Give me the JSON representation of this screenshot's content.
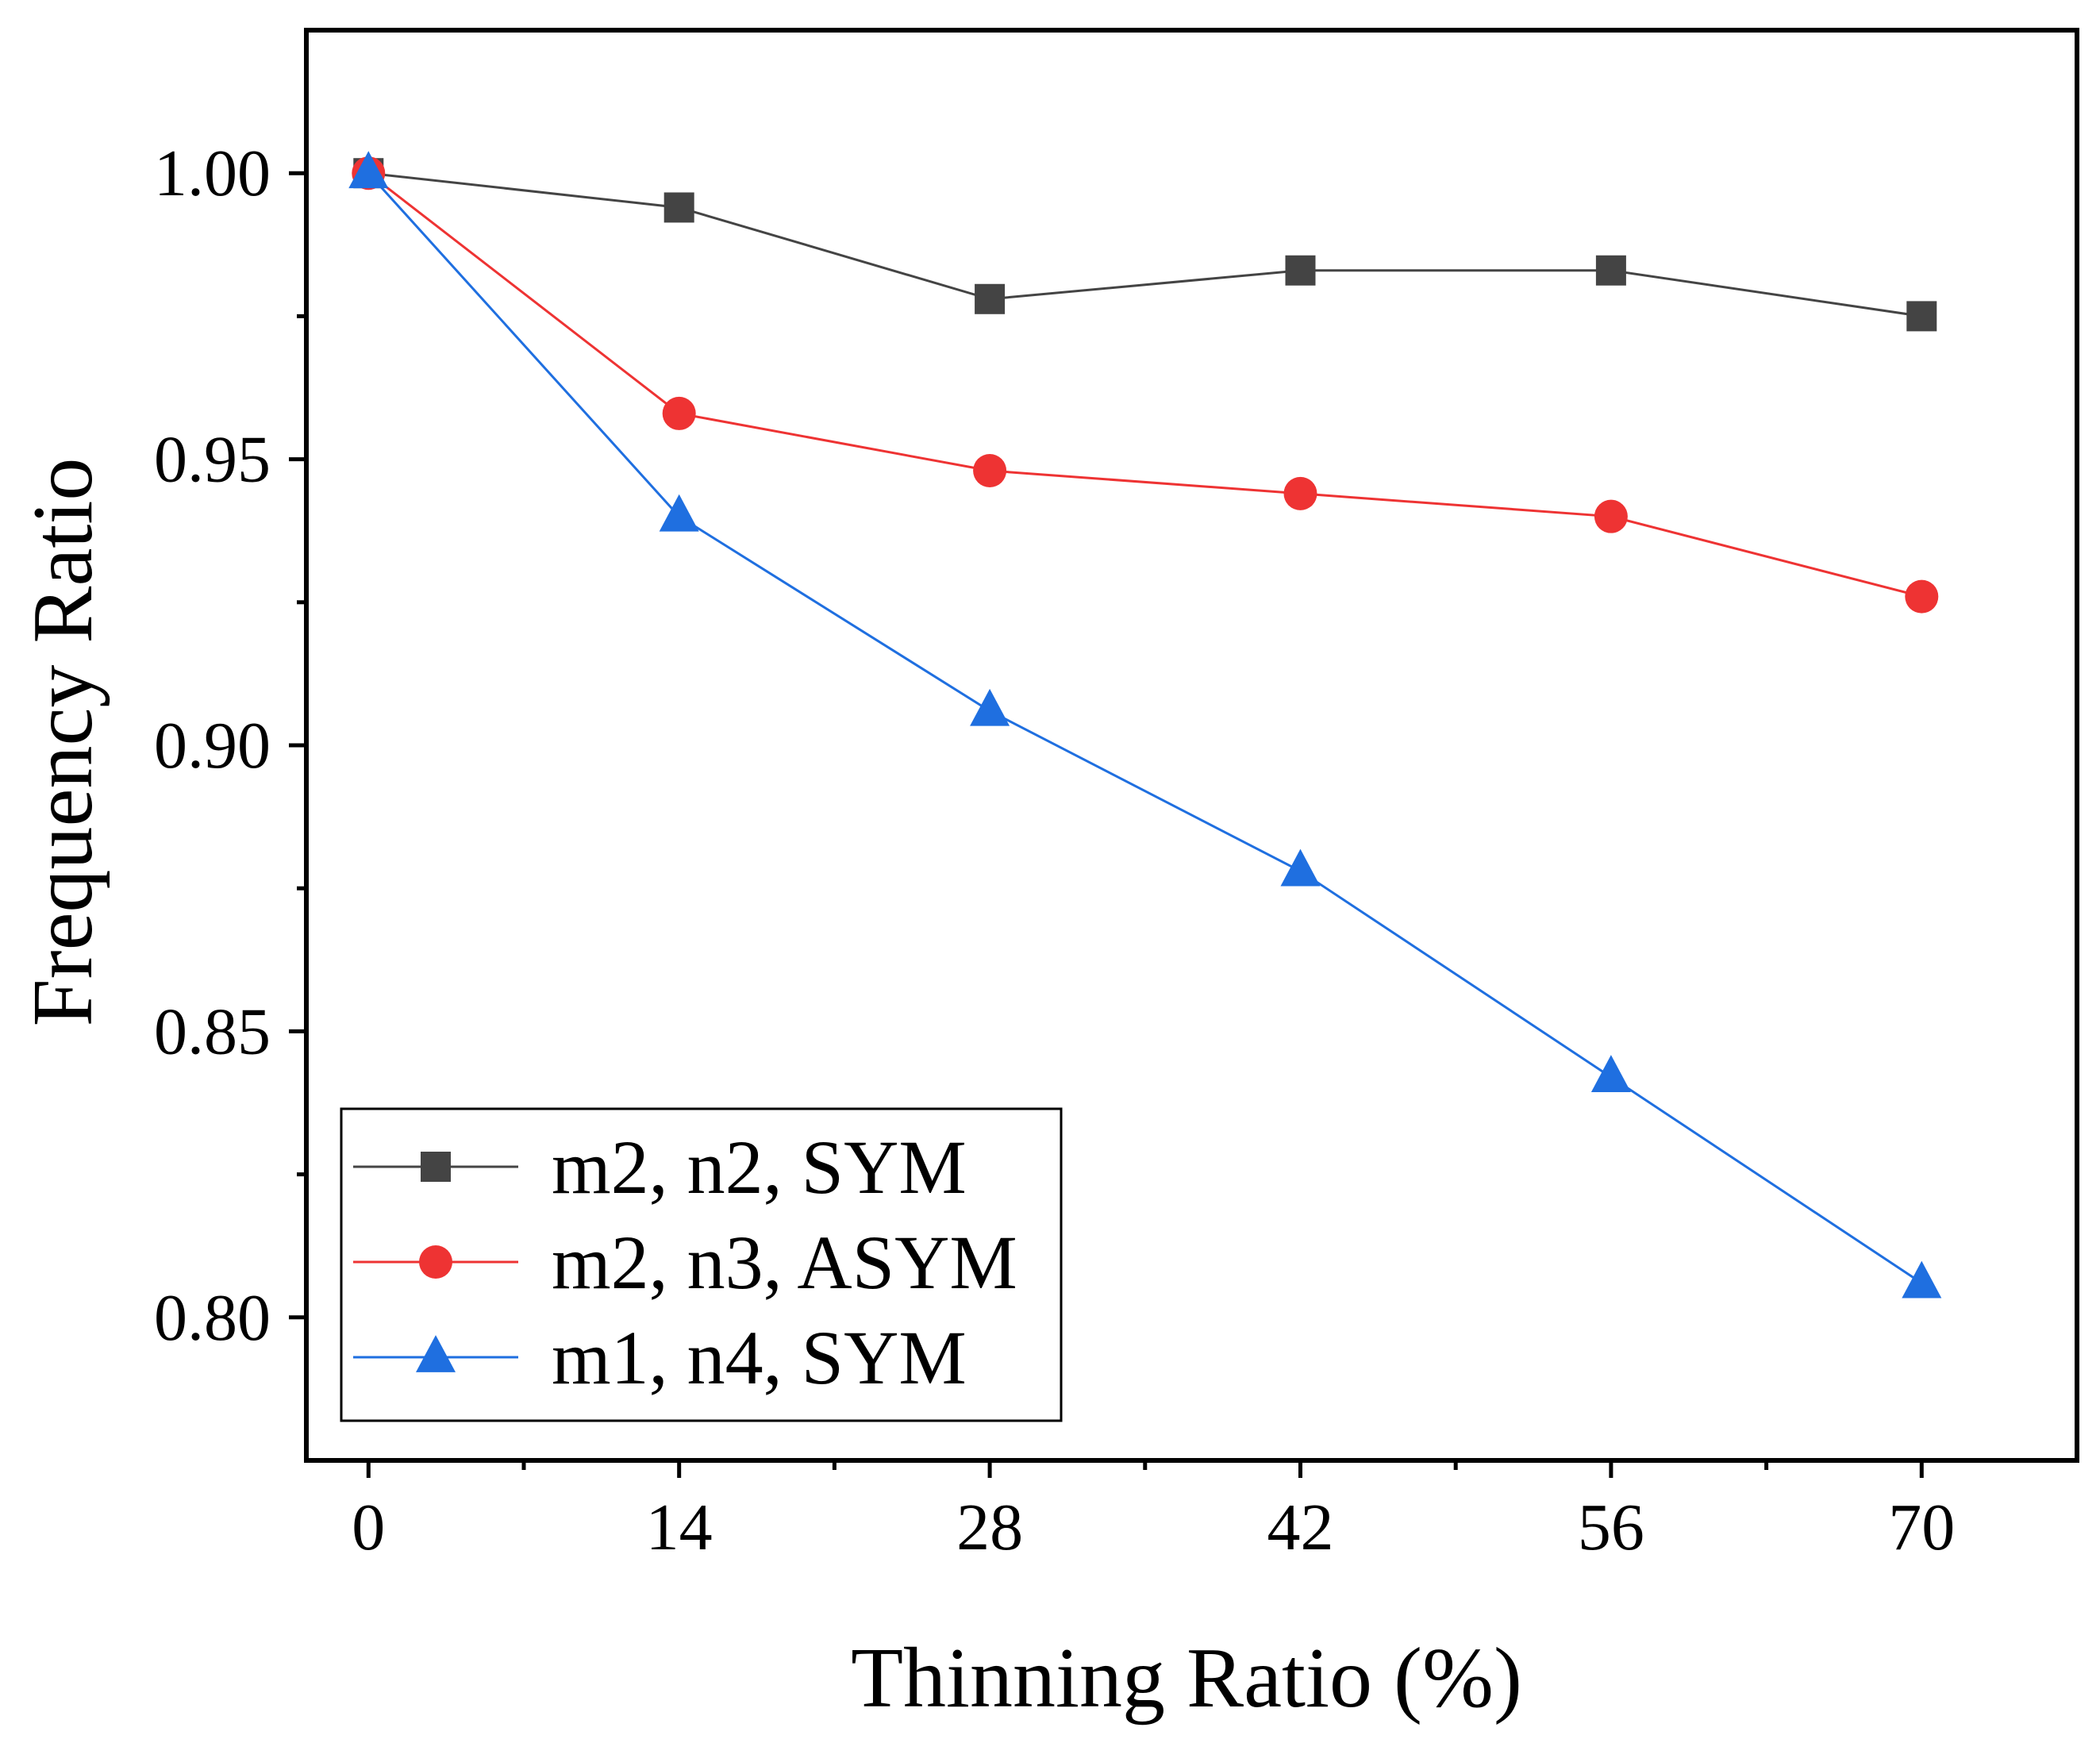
{
  "chart_data": {
    "type": "line",
    "xlabel": "Thinning Ratio (%)",
    "ylabel": "Frequency Ratio",
    "x": [
      0,
      14,
      28,
      42,
      56,
      70
    ],
    "xlim": [
      -2.8,
      77
    ],
    "ylim": [
      0.775,
      1.025
    ],
    "xticks": [
      0,
      14,
      28,
      42,
      56,
      70
    ],
    "xtick_labels": [
      "0",
      "14",
      "28",
      "42",
      "56",
      "70"
    ],
    "yticks": [
      0.8,
      0.85,
      0.9,
      0.95,
      1.0
    ],
    "ytick_labels": [
      "0.80",
      "0.85",
      "0.90",
      "0.95",
      "1.00"
    ],
    "grid": false,
    "legend_position": "bottom-left",
    "series": [
      {
        "name": "m2, n2, SYM",
        "color": "#444444",
        "marker": "square",
        "values": [
          1.0,
          0.994,
          0.978,
          0.983,
          0.983,
          0.975
        ]
      },
      {
        "name": "m2, n3, ASYM",
        "color": "#ee3333",
        "marker": "circle",
        "values": [
          1.0,
          0.958,
          0.948,
          0.944,
          0.94,
          0.926
        ]
      },
      {
        "name": "m1, n4, SYM",
        "color": "#1f6fe0",
        "marker": "triangle",
        "values": [
          1.0,
          0.94,
          0.906,
          0.878,
          0.842,
          0.806
        ]
      }
    ]
  }
}
